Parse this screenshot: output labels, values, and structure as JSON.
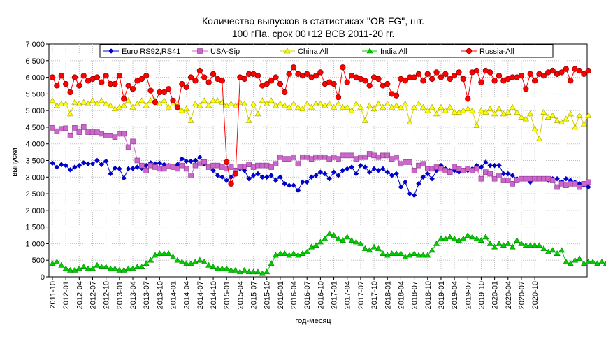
{
  "chart_data": {
    "type": "line",
    "title_line1": "Количество выпусков в статистиках \"OB-FG\", шт.",
    "title_line2": "100 гПа. срок 00+12 ВСВ 2011-20 гг.",
    "xlabel": "год-месяц",
    "ylabel": "выпуски",
    "ylim": [
      0,
      7000
    ],
    "yticks": [
      0,
      500,
      1000,
      1500,
      2000,
      2500,
      3000,
      3500,
      4000,
      4500,
      5000,
      5500,
      6000,
      6500,
      7000
    ],
    "ytick_labels": [
      "0",
      "500",
      "1 000",
      "1 500",
      "2 000",
      "2 500",
      "3 000",
      "3 500",
      "4 000",
      "4 500",
      "5 000",
      "5 500",
      "6 000",
      "6 500",
      "7 000"
    ],
    "x_tick_labels": [
      "2011-10",
      "2012-01",
      "2012-04",
      "2012-07",
      "2012-10",
      "2013-01",
      "2013-04",
      "2013-07",
      "2013-10",
      "2014-01",
      "2014-04",
      "2014-07",
      "2014-10",
      "2015-01",
      "2015-04",
      "2015-07",
      "2015-10",
      "2016-01",
      "2016-04",
      "2016-07",
      "2016-10",
      "2017-01",
      "2017-04",
      "2017-07",
      "2017-10",
      "2018-01",
      "2018-04",
      "2018-07",
      "2018-10",
      "2019-01",
      "2019-04",
      "2019-07",
      "2019-10",
      "2020-01",
      "2020-04",
      "2020-07",
      "2020-10"
    ],
    "grid": true,
    "legend_position": "top",
    "series": [
      {
        "name": "Euro RS92,RS41",
        "color": "#0000CC",
        "marker": "diamond",
        "values": [
          3420,
          3300,
          3380,
          3350,
          3220,
          3300,
          3350,
          3430,
          3400,
          3400,
          3500,
          3380,
          3480,
          3100,
          3270,
          3250,
          2970,
          3250,
          3260,
          3300,
          3270,
          3350,
          3430,
          3400,
          3420,
          3380,
          3350,
          3300,
          3380,
          3550,
          3480,
          3480,
          3500,
          3600,
          3400,
          3300,
          3200,
          3050,
          3000,
          2900,
          3000,
          3200,
          3250,
          3200,
          2950,
          3050,
          3100,
          3000,
          3000,
          3050,
          2900,
          3000,
          2800,
          2750,
          2750,
          2600,
          2850,
          2850,
          3000,
          3050,
          3150,
          3100,
          2950,
          3150,
          3050,
          3200,
          3250,
          3300,
          3100,
          3350,
          3300,
          3150,
          3250,
          3200,
          3250,
          3150,
          3050,
          3100,
          2700,
          2850,
          2500,
          2450,
          2800,
          3000,
          3100,
          2950,
          3200,
          3350,
          3250,
          3200,
          3200,
          3150,
          3200,
          3200,
          3250,
          3350,
          3300,
          3450,
          3350,
          3350,
          3350,
          3100,
          3100,
          3050,
          2950,
          2950,
          2950,
          2850,
          2950,
          2950,
          2950,
          2900,
          2950,
          2950,
          2850,
          2950,
          2900,
          2850,
          2800,
          2750,
          2700
        ]
      },
      {
        "name": "USA-Sip",
        "color": "#CC66CC",
        "marker": "square",
        "values": [
          4480,
          4380,
          4450,
          4470,
          4250,
          4480,
          4350,
          4500,
          4350,
          4350,
          4350,
          4300,
          4250,
          4250,
          4200,
          4300,
          4300,
          3900,
          4070,
          3500,
          3350,
          3200,
          3350,
          3300,
          3250,
          3250,
          3330,
          3300,
          3250,
          3350,
          3250,
          3050,
          3350,
          3400,
          3450,
          3300,
          3350,
          3350,
          3300,
          3250,
          3300,
          3200,
          3300,
          3320,
          3380,
          3300,
          3350,
          3350,
          3350,
          3300,
          3400,
          3600,
          3550,
          3550,
          3600,
          3400,
          3600,
          3600,
          3550,
          3600,
          3600,
          3600,
          3550,
          3600,
          3550,
          3650,
          3650,
          3650,
          3550,
          3600,
          3600,
          3700,
          3650,
          3600,
          3650,
          3650,
          3550,
          3600,
          3400,
          3450,
          3450,
          3200,
          3350,
          3400,
          3250,
          3250,
          3300,
          3250,
          3200,
          3150,
          3300,
          3250,
          3200,
          3250,
          3200,
          3250,
          2950,
          3150,
          3100,
          2950,
          3050,
          2900,
          2900,
          2800,
          2900,
          2950,
          2950,
          2950,
          2950,
          2950,
          2950,
          2950,
          2900,
          2700,
          2800,
          2750,
          2800,
          2800,
          2700,
          2800,
          2850
        ]
      },
      {
        "name": "China All",
        "color": "#FFFF00",
        "marker": "triangle",
        "values": [
          5300,
          5150,
          5200,
          5200,
          4900,
          5250,
          5200,
          5250,
          5200,
          5300,
          5200,
          5300,
          5200,
          5150,
          5050,
          5100,
          5150,
          5300,
          5100,
          5200,
          5300,
          5150,
          5300,
          5300,
          5200,
          5300,
          5100,
          5200,
          5200,
          5000,
          5050,
          4700,
          5200,
          5150,
          5300,
          5150,
          5300,
          5300,
          5250,
          5150,
          5200,
          5150,
          5250,
          5200,
          4700,
          5200,
          4900,
          5300,
          5200,
          5300,
          5150,
          5200,
          5150,
          5100,
          5200,
          5100,
          5050,
          5200,
          5100,
          5200,
          5200,
          5150,
          5200,
          5100,
          5200,
          5100,
          5100,
          5000,
          5200,
          5100,
          4700,
          5150,
          5050,
          5200,
          5100,
          5200,
          5100,
          5150,
          5100,
          5200,
          4650,
          5100,
          5200,
          5100,
          5000,
          5100,
          4900,
          5100,
          5000,
          5100,
          4950,
          4950,
          5000,
          5050,
          5000,
          4550,
          5000,
          4950,
          5050,
          4900,
          5050,
          4900,
          4950,
          5100,
          4950,
          4800,
          4750,
          4900,
          4450,
          4150,
          4950,
          4800,
          4850,
          4700,
          4650,
          4750,
          4900,
          4500,
          4850,
          4600,
          4850
        ]
      },
      {
        "name": "India All",
        "color": "#00CC00",
        "marker": "triangle",
        "values": [
          400,
          450,
          350,
          250,
          200,
          200,
          250,
          300,
          250,
          250,
          350,
          300,
          300,
          250,
          250,
          200,
          200,
          250,
          250,
          300,
          300,
          400,
          500,
          650,
          700,
          700,
          700,
          600,
          500,
          450,
          400,
          400,
          450,
          500,
          450,
          350,
          300,
          250,
          250,
          250,
          200,
          200,
          150,
          200,
          150,
          150,
          150,
          100,
          150,
          400,
          650,
          700,
          700,
          650,
          700,
          650,
          700,
          750,
          900,
          950,
          1050,
          1150,
          1300,
          1250,
          1150,
          1100,
          1200,
          1100,
          1050,
          1000,
          850,
          800,
          900,
          850,
          700,
          650,
          700,
          700,
          700,
          600,
          650,
          700,
          650,
          650,
          650,
          800,
          1000,
          1150,
          1150,
          1200,
          1150,
          1100,
          1150,
          1250,
          1200,
          1150,
          1100,
          1200,
          1000,
          900,
          1000,
          950,
          1000,
          900,
          1100,
          1000,
          950,
          950,
          950,
          950,
          850,
          750,
          800,
          700,
          800,
          450,
          400,
          500,
          550,
          400,
          450,
          450,
          400,
          450,
          400
        ]
      },
      {
        "name": "Russia-All",
        "color": "#FF0000",
        "marker": "circle",
        "values": [
          6000,
          5750,
          6050,
          5800,
          5550,
          6000,
          5750,
          6050,
          5900,
          5950,
          6000,
          5850,
          6050,
          5800,
          5800,
          6050,
          5350,
          5750,
          5650,
          5900,
          5950,
          6050,
          5600,
          5250,
          5550,
          5550,
          5650,
          5300,
          5100,
          5800,
          5700,
          6000,
          5900,
          6200,
          6000,
          5850,
          6100,
          5950,
          5900,
          3450,
          2800,
          3100,
          6000,
          5950,
          6100,
          6100,
          6050,
          5750,
          5800,
          5900,
          6000,
          5800,
          5550,
          6100,
          6300,
          6100,
          6050,
          6100,
          6000,
          6050,
          6150,
          5800,
          5850,
          5800,
          5400,
          6300,
          5850,
          6050,
          6000,
          5950,
          5900,
          5750,
          6000,
          5950,
          5750,
          5800,
          5500,
          5450,
          5950,
          5900,
          6000,
          6000,
          6100,
          5900,
          6100,
          5950,
          6150,
          6000,
          6100,
          5950,
          6050,
          6150,
          5950,
          5350,
          6150,
          6200,
          5850,
          6200,
          6150,
          5900,
          6050,
          5900,
          5950,
          6000,
          6000,
          6050,
          5650,
          6100,
          5900,
          6100,
          6050,
          6150,
          6200,
          6100,
          6150,
          6250,
          5900,
          6250,
          6200,
          6100,
          6200
        ]
      }
    ]
  }
}
